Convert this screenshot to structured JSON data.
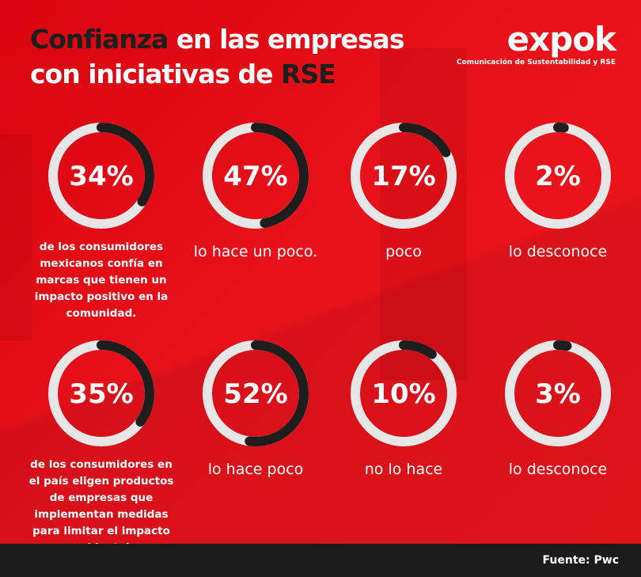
{
  "header": {
    "title_dark": "Confianza",
    "title_line1_rest": " en las empresas",
    "title_line2": "con iniciativas de ",
    "title_dark2": "RSE"
  },
  "logo": {
    "name": "expok",
    "tagline": "Comunicación de Sustentabilidad y RSE"
  },
  "colors": {
    "background": "#e10a14",
    "ring_track": "#e6e6e6",
    "ring_fill": "#1e1e1e",
    "footer": "#1b1b1b"
  },
  "chart_data": {
    "type": "donut",
    "rows": [
      {
        "description": "de los consumidores mexicanos confía en marcas que tienen un impacto positivo en la comunidad.",
        "items": [
          {
            "value": 34,
            "label": "34%"
          },
          {
            "value": 47,
            "label": "47%",
            "caption": "lo hace un poco."
          },
          {
            "value": 17,
            "label": "17%",
            "caption": "poco"
          },
          {
            "value": 2,
            "label": "2%",
            "caption": "lo desconoce"
          }
        ]
      },
      {
        "description": "de los consumidores en el país eligen productos de empresas que implementan medidas para limitar el impacto ambiental.",
        "items": [
          {
            "value": 35,
            "label": "35%"
          },
          {
            "value": 52,
            "label": "52%",
            "caption": "lo hace poco"
          },
          {
            "value": 10,
            "label": "10%",
            "caption": "no lo hace"
          },
          {
            "value": 3,
            "label": "3%",
            "caption": "lo desconoce"
          }
        ]
      }
    ]
  },
  "footer": {
    "source": "Fuente: Pwc"
  }
}
